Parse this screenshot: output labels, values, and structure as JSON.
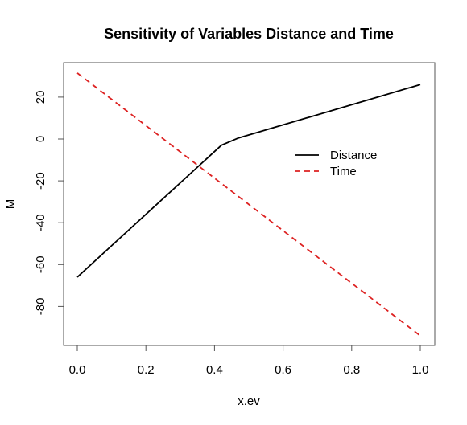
{
  "chart_data": {
    "type": "line",
    "title": "Sensitivity of Variables Distance and Time",
    "xlabel": "x.ev",
    "ylabel": "M",
    "xlim": [
      0.0,
      1.0
    ],
    "ylim": [
      -97,
      34
    ],
    "xticks": [
      "0.0",
      "0.2",
      "0.4",
      "0.6",
      "0.8",
      "1.0"
    ],
    "yticks": [
      "20",
      "0",
      "-20",
      "-40",
      "-60",
      "-80"
    ],
    "legend_position": "right",
    "series": [
      {
        "name": "Distance",
        "color": "#000000",
        "style": "solid",
        "x": [
          0.0,
          0.42,
          0.47,
          1.0
        ],
        "y": [
          -66,
          -3,
          0.5,
          26
        ]
      },
      {
        "name": "Time",
        "color": "#dd2222",
        "style": "dashed",
        "x": [
          0.0,
          1.0
        ],
        "y": [
          31.5,
          -94
        ]
      }
    ]
  }
}
